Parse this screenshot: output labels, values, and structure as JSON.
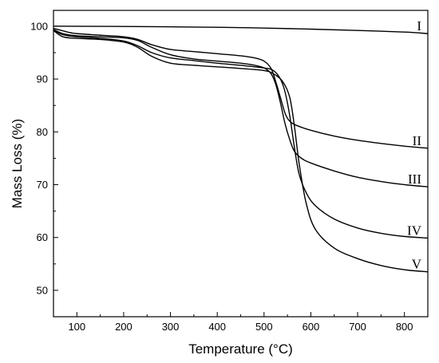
{
  "chart_data": {
    "type": "line",
    "xlabel": "Temperature (°C)",
    "ylabel": "Mass Loss (%)",
    "xlim": [
      50,
      850
    ],
    "ylim": [
      45,
      103
    ],
    "x_ticks": [
      100,
      200,
      300,
      400,
      500,
      600,
      700,
      800
    ],
    "y_ticks": [
      50,
      60,
      70,
      80,
      90,
      100
    ],
    "grid": false,
    "legend": "none",
    "series": [
      {
        "name": "I",
        "points": [
          [
            50,
            100
          ],
          [
            200,
            99.95
          ],
          [
            400,
            99.8
          ],
          [
            500,
            99.65
          ],
          [
            600,
            99.45
          ],
          [
            700,
            99.2
          ],
          [
            800,
            98.9
          ],
          [
            850,
            98.6
          ]
        ]
      },
      {
        "name": "II",
        "points": [
          [
            50,
            99.6
          ],
          [
            80,
            98.9
          ],
          [
            100,
            98.6
          ],
          [
            150,
            98.3
          ],
          [
            200,
            98.0
          ],
          [
            230,
            97.5
          ],
          [
            260,
            96.5
          ],
          [
            300,
            95.6
          ],
          [
            350,
            95.2
          ],
          [
            400,
            94.8
          ],
          [
            450,
            94.4
          ],
          [
            480,
            94.0
          ],
          [
            500,
            93.4
          ],
          [
            515,
            92.0
          ],
          [
            525,
            89.5
          ],
          [
            535,
            86.5
          ],
          [
            545,
            83.5
          ],
          [
            555,
            82.0
          ],
          [
            570,
            81.2
          ],
          [
            600,
            80.3
          ],
          [
            650,
            79.2
          ],
          [
            700,
            78.4
          ],
          [
            750,
            77.8
          ],
          [
            800,
            77.3
          ],
          [
            850,
            76.9
          ]
        ]
      },
      {
        "name": "III",
        "points": [
          [
            50,
            99.4
          ],
          [
            70,
            98.6
          ],
          [
            100,
            98.2
          ],
          [
            150,
            98.0
          ],
          [
            200,
            97.8
          ],
          [
            230,
            97.3
          ],
          [
            260,
            96.0
          ],
          [
            300,
            94.6
          ],
          [
            350,
            93.8
          ],
          [
            400,
            93.4
          ],
          [
            450,
            93.0
          ],
          [
            480,
            92.6
          ],
          [
            500,
            92.1
          ],
          [
            515,
            91.0
          ],
          [
            525,
            89.0
          ],
          [
            535,
            85.5
          ],
          [
            545,
            81.5
          ],
          [
            555,
            78.5
          ],
          [
            565,
            76.3
          ],
          [
            580,
            75.0
          ],
          [
            600,
            74.1
          ],
          [
            650,
            72.6
          ],
          [
            700,
            71.4
          ],
          [
            750,
            70.6
          ],
          [
            800,
            70.0
          ],
          [
            850,
            69.6
          ]
        ]
      },
      {
        "name": "IV",
        "points": [
          [
            50,
            99.3
          ],
          [
            70,
            98.4
          ],
          [
            100,
            98.0
          ],
          [
            150,
            97.7
          ],
          [
            200,
            97.2
          ],
          [
            230,
            96.3
          ],
          [
            260,
            95.0
          ],
          [
            300,
            94.0
          ],
          [
            350,
            93.5
          ],
          [
            400,
            93.0
          ],
          [
            450,
            92.6
          ],
          [
            500,
            92.1
          ],
          [
            520,
            91.6
          ],
          [
            535,
            90.0
          ],
          [
            545,
            87.5
          ],
          [
            555,
            83.0
          ],
          [
            565,
            77.0
          ],
          [
            575,
            72.0
          ],
          [
            590,
            68.5
          ],
          [
            610,
            66.0
          ],
          [
            650,
            63.5
          ],
          [
            700,
            61.8
          ],
          [
            750,
            60.8
          ],
          [
            800,
            60.2
          ],
          [
            850,
            59.9
          ]
        ]
      },
      {
        "name": "V",
        "points": [
          [
            50,
            99.2
          ],
          [
            70,
            98.0
          ],
          [
            100,
            97.7
          ],
          [
            150,
            97.5
          ],
          [
            200,
            97.0
          ],
          [
            230,
            96.0
          ],
          [
            260,
            94.3
          ],
          [
            300,
            93.0
          ],
          [
            350,
            92.6
          ],
          [
            400,
            92.3
          ],
          [
            450,
            92.0
          ],
          [
            500,
            91.6
          ],
          [
            520,
            91.0
          ],
          [
            540,
            89.5
          ],
          [
            555,
            86.5
          ],
          [
            565,
            81.0
          ],
          [
            575,
            74.0
          ],
          [
            590,
            66.5
          ],
          [
            610,
            61.5
          ],
          [
            650,
            58.0
          ],
          [
            700,
            56.0
          ],
          [
            750,
            54.7
          ],
          [
            800,
            53.9
          ],
          [
            850,
            53.5
          ]
        ]
      }
    ]
  }
}
